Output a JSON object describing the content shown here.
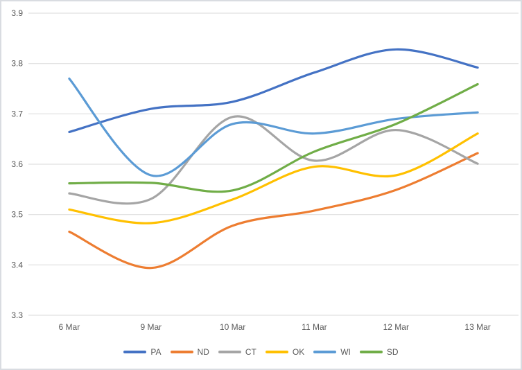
{
  "chart_data": {
    "type": "line",
    "title": "",
    "smooth": true,
    "grid": true,
    "legend_position": "bottom",
    "categories": [
      "6 Mar",
      "9 Mar",
      "10 Mar",
      "11 Mar",
      "12 Mar",
      "13 Mar"
    ],
    "series": [
      {
        "name": "PA",
        "color": "#4472C4",
        "values": [
          3.664,
          3.71,
          3.724,
          3.782,
          3.828,
          3.792
        ]
      },
      {
        "name": "ND",
        "color": "#ED7D31",
        "values": [
          3.466,
          3.394,
          3.478,
          3.508,
          3.549,
          3.622
        ]
      },
      {
        "name": "CT",
        "color": "#A5A5A5",
        "values": [
          3.542,
          3.531,
          3.694,
          3.607,
          3.668,
          3.601
        ]
      },
      {
        "name": "OK",
        "color": "#FFC000",
        "values": [
          3.51,
          3.483,
          3.53,
          3.595,
          3.578,
          3.661
        ]
      },
      {
        "name": "WI",
        "color": "#5B9BD5",
        "values": [
          3.77,
          3.578,
          3.68,
          3.661,
          3.69,
          3.703
        ]
      },
      {
        "name": "SD",
        "color": "#70AD47",
        "values": [
          3.562,
          3.563,
          3.548,
          3.625,
          3.68,
          3.759
        ]
      }
    ],
    "ylim": [
      3.3,
      3.9
    ],
    "ytick_step": 0.1,
    "ytick_labels": [
      "3.9",
      "3.8",
      "3.7",
      "3.6",
      "3.5",
      "3.4",
      "3.3"
    ],
    "xlabel": "",
    "ylabel": ""
  },
  "colors": {
    "gridline": "#D9D9D9",
    "axis_text": "#595959",
    "background": "#FFFFFF",
    "frame_border": "#D9DCE1"
  }
}
